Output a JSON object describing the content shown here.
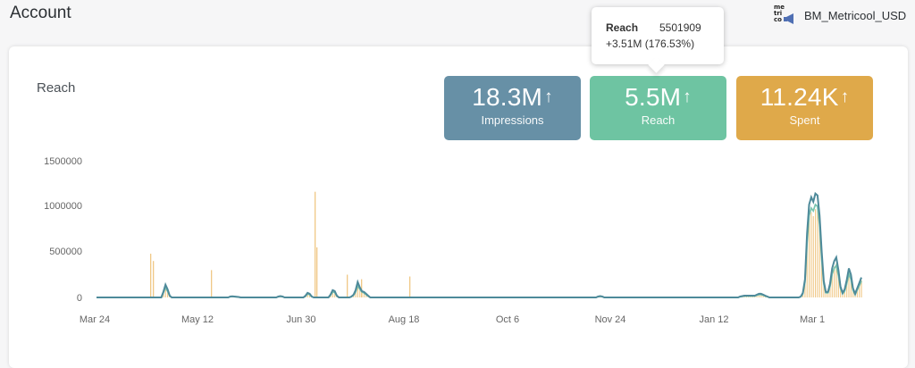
{
  "header": {
    "title": "Account",
    "logo_text": [
      "me",
      "tri",
      "co"
    ],
    "account_name": "BM_Metricool_USD"
  },
  "card": {
    "title": "Reach"
  },
  "kpis": [
    {
      "value": "18.3M",
      "label": "Impressions",
      "color": "#6790a6"
    },
    {
      "value": "5.5M",
      "label": "Reach",
      "color": "#6ec4a2"
    },
    {
      "value": "11.24K",
      "label": "Spent",
      "color": "#dfa94a"
    }
  ],
  "tooltip": {
    "label": "Reach",
    "value": "5501909",
    "change": "+3.51M (176.53%)"
  },
  "chart_data": {
    "type": "line",
    "x_labels": [
      "Mar 24",
      "May 12",
      "Jun 30",
      "Aug 18",
      "Oct 6",
      "Nov 24",
      "Jan 12",
      "Mar 1"
    ],
    "y_ticks": [
      "1500000",
      "1000000",
      "500000",
      "0"
    ],
    "ylim": [
      0,
      1500000
    ],
    "colors": {
      "bars": "#f0c886",
      "line_dark": "#4e8a9a",
      "line_teal": "#7cc5b0"
    },
    "series": [
      {
        "values": [
          0,
          0,
          0,
          0,
          0,
          0,
          0,
          0,
          0,
          0,
          0,
          0,
          0,
          0,
          0,
          0,
          0,
          0,
          0,
          0,
          0,
          0,
          0,
          0,
          0,
          0,
          0,
          0,
          0,
          0,
          0,
          0,
          60000,
          140000,
          90000,
          20000,
          0,
          0,
          0,
          0,
          0,
          0,
          0,
          0,
          0,
          0,
          0,
          0,
          0,
          0,
          0,
          0,
          0,
          0,
          0,
          0,
          0,
          0,
          0,
          0,
          0,
          0,
          0,
          0,
          10000,
          12000,
          10000,
          8000,
          5000,
          0,
          0,
          0,
          0,
          0,
          0,
          0,
          0,
          0,
          0,
          0,
          0,
          0,
          0,
          0,
          0,
          0,
          0,
          10000,
          15000,
          10000,
          0,
          0,
          0,
          0,
          0,
          0,
          0,
          0,
          0,
          0,
          20000,
          50000,
          40000,
          10000,
          0,
          0,
          0,
          0,
          0,
          0,
          0,
          0,
          30000,
          80000,
          70000,
          20000,
          0,
          0,
          0,
          0,
          0,
          0,
          10000,
          30000,
          80000,
          170000,
          110000,
          70000,
          60000,
          40000,
          20000,
          0,
          0,
          0,
          0,
          0,
          0,
          0,
          0,
          0,
          0,
          0,
          0,
          0,
          0,
          0,
          0,
          0,
          0,
          0,
          0,
          0,
          0,
          0,
          0,
          0,
          0,
          0,
          0,
          0,
          0,
          0,
          0,
          0,
          0,
          0,
          0,
          0,
          0,
          0,
          0,
          0,
          0,
          0,
          0,
          0,
          0,
          0,
          0,
          0,
          0,
          0,
          0,
          0,
          0,
          0,
          0,
          0,
          0,
          0,
          0,
          0,
          0,
          0,
          0,
          0,
          0,
          0,
          0,
          0,
          0,
          0,
          0,
          0,
          0,
          0,
          0,
          0,
          0,
          0,
          0,
          0,
          0,
          0,
          0,
          0,
          0,
          0,
          0,
          0,
          0,
          0,
          0,
          0,
          0,
          0,
          0,
          0,
          0,
          0,
          0,
          0,
          0,
          0,
          0,
          0,
          0,
          0,
          0,
          0,
          10000,
          15000,
          10000,
          0,
          0,
          0,
          0,
          0,
          0,
          0,
          0,
          0,
          0,
          0,
          0,
          0,
          0,
          0,
          0,
          0,
          0,
          0,
          0,
          0,
          0,
          0,
          0,
          0,
          0,
          0,
          0,
          0,
          0,
          0,
          0,
          0,
          0,
          0,
          0,
          0,
          0,
          0,
          0,
          0,
          0,
          0,
          0,
          0,
          0,
          0,
          0,
          0,
          0,
          0,
          0,
          0,
          0,
          0,
          0,
          0,
          0,
          0,
          0,
          0,
          0,
          0,
          0,
          0,
          10000,
          15000,
          20000,
          20000,
          20000,
          20000,
          20000,
          20000,
          30000,
          40000,
          40000,
          30000,
          20000,
          10000,
          0,
          0,
          0,
          0,
          0,
          0,
          0,
          0,
          0,
          0,
          0,
          0,
          0,
          0,
          0,
          10000,
          50000,
          200000,
          700000,
          1020000,
          1100000,
          1050000,
          1140000,
          1120000,
          900000,
          500000,
          180000,
          60000,
          60000,
          150000,
          320000,
          400000,
          440000,
          300000,
          120000,
          50000,
          90000,
          190000,
          320000,
          250000,
          100000,
          40000,
          100000,
          160000,
          220000
        ]
      },
      {
        "values": [
          0,
          0,
          0,
          0,
          0,
          0,
          0,
          0,
          0,
          0,
          0,
          0,
          0,
          0,
          0,
          0,
          0,
          0,
          0,
          0,
          0,
          0,
          0,
          0,
          0,
          0,
          0,
          0,
          0,
          0,
          0,
          0,
          50000,
          110000,
          70000,
          20000,
          0,
          0,
          0,
          0,
          0,
          0,
          0,
          0,
          0,
          0,
          0,
          0,
          0,
          0,
          0,
          0,
          0,
          0,
          0,
          0,
          0,
          0,
          0,
          0,
          0,
          0,
          0,
          0,
          8000,
          10000,
          8000,
          6000,
          4000,
          0,
          0,
          0,
          0,
          0,
          0,
          0,
          0,
          0,
          0,
          0,
          0,
          0,
          0,
          0,
          0,
          0,
          0,
          8000,
          12000,
          8000,
          0,
          0,
          0,
          0,
          0,
          0,
          0,
          0,
          0,
          0,
          15000,
          40000,
          30000,
          8000,
          0,
          0,
          0,
          0,
          0,
          0,
          0,
          0,
          25000,
          60000,
          55000,
          15000,
          0,
          0,
          0,
          0,
          0,
          0,
          8000,
          25000,
          60000,
          130000,
          90000,
          60000,
          50000,
          30000,
          15000,
          0,
          0,
          0,
          0,
          0,
          0,
          0,
          0,
          0,
          0,
          0,
          0,
          0,
          0,
          0,
          0,
          0,
          0,
          0,
          0,
          0,
          0,
          0,
          0,
          0,
          0,
          0,
          0,
          0,
          0,
          0,
          0,
          0,
          0,
          0,
          0,
          0,
          0,
          0,
          0,
          0,
          0,
          0,
          0,
          0,
          0,
          0,
          0,
          0,
          0,
          0,
          0,
          0,
          0,
          0,
          0,
          0,
          0,
          0,
          0,
          0,
          0,
          0,
          0,
          0,
          0,
          0,
          0,
          0,
          0,
          0,
          0,
          0,
          0,
          0,
          0,
          0,
          0,
          0,
          0,
          0,
          0,
          0,
          0,
          0,
          0,
          0,
          0,
          0,
          0,
          0,
          0,
          0,
          0,
          0,
          0,
          0,
          0,
          0,
          0,
          0,
          0,
          0,
          0,
          0,
          0,
          0,
          0,
          0,
          8000,
          12000,
          8000,
          0,
          0,
          0,
          0,
          0,
          0,
          0,
          0,
          0,
          0,
          0,
          0,
          0,
          0,
          0,
          0,
          0,
          0,
          0,
          0,
          0,
          0,
          0,
          0,
          0,
          0,
          0,
          0,
          0,
          0,
          0,
          0,
          0,
          0,
          0,
          0,
          0,
          0,
          0,
          0,
          0,
          0,
          0,
          0,
          0,
          0,
          0,
          0,
          0,
          0,
          0,
          0,
          0,
          0,
          0,
          0,
          0,
          0,
          0,
          0,
          0,
          0,
          0,
          0,
          0,
          8000,
          12000,
          15000,
          15000,
          15000,
          15000,
          15000,
          15000,
          25000,
          30000,
          30000,
          25000,
          15000,
          8000,
          0,
          0,
          0,
          0,
          0,
          0,
          0,
          0,
          0,
          0,
          0,
          0,
          0,
          0,
          0,
          8000,
          40000,
          170000,
          600000,
          900000,
          980000,
          950000,
          1020000,
          1000000,
          800000,
          420000,
          150000,
          50000,
          50000,
          120000,
          260000,
          320000,
          350000,
          240000,
          100000,
          40000,
          70000,
          150000,
          260000,
          200000,
          80000,
          30000,
          80000,
          130000,
          180000
        ]
      }
    ]
  }
}
